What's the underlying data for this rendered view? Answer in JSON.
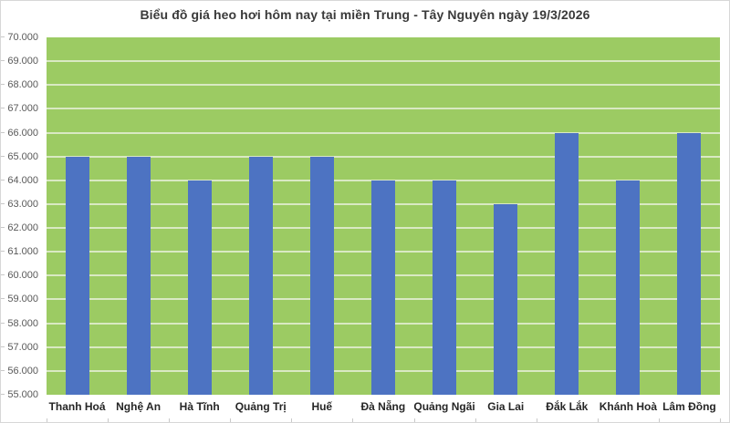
{
  "title": "Biểu đồ giá heo hơi hôm nay tại miền Trung - Tây Nguyên ngày 19/3/2026",
  "chart_data": {
    "type": "bar",
    "title": "Biểu đồ giá heo hơi hôm nay tại miền Trung - Tây Nguyên ngày 19/3/2026",
    "categories": [
      "Thanh Hoá",
      "Nghệ An",
      "Hà Tĩnh",
      "Quảng Trị",
      "Huế",
      "Đà Nẵng",
      "Quảng Ngãi",
      "Gia Lai",
      "Đắk Lắk",
      "Khánh Hoà",
      "Lâm Đồng"
    ],
    "values": [
      65000,
      65000,
      64000,
      65000,
      65000,
      64000,
      64000,
      63000,
      66000,
      64000,
      66000
    ],
    "y_tick_labels": [
      "70.000",
      "69.000",
      "68.000",
      "67.000",
      "66.000",
      "65.000",
      "64.000",
      "63.000",
      "62.000",
      "61.000",
      "60.000",
      "59.000",
      "58.000",
      "57.000",
      "56.000",
      "55.000"
    ],
    "ylim": [
      55000,
      70000
    ],
    "y_step": 1000,
    "xlabel": "",
    "ylabel": "",
    "grid": true,
    "legend_position": "none",
    "colors": {
      "bar": "#4d73c2",
      "plot_background": "#9ccb63",
      "gridline": "#d9e9c3",
      "title_text": "#3a3a3a",
      "y_label_text": "#595959",
      "x_label_text": "#262626"
    }
  }
}
